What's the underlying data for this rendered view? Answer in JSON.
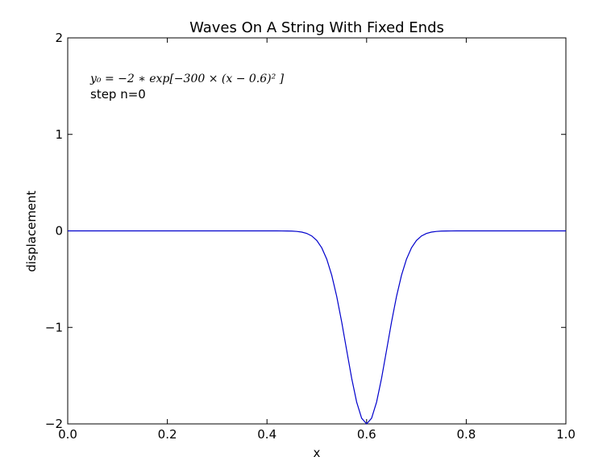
{
  "chart_data": {
    "type": "line",
    "title": "Waves On A String With Fixed Ends",
    "xlabel": "x",
    "ylabel": "displacement",
    "xlim": [
      0.0,
      1.0
    ],
    "ylim": [
      -2,
      2
    ],
    "xticks": [
      0.0,
      0.2,
      0.4,
      0.6,
      0.8,
      1.0
    ],
    "xtick_labels": [
      "0.0",
      "0.2",
      "0.4",
      "0.6",
      "0.8",
      "1.0"
    ],
    "yticks": [
      -2,
      -1,
      0,
      1,
      2
    ],
    "ytick_labels": [
      "−2",
      "−1",
      "0",
      "1",
      "2"
    ],
    "grid": false,
    "series": [
      {
        "color": "#0000cc",
        "formula": {
          "amplitude": -2,
          "k": 300,
          "center": 0.6
        },
        "x_start": 0.0,
        "x_end": 1.0,
        "x_step": 0.01
      }
    ],
    "annotations": [
      "y₀ = −2 ∗ exp[−300 × (x − 0.6)² ]",
      "step n=0"
    ]
  }
}
